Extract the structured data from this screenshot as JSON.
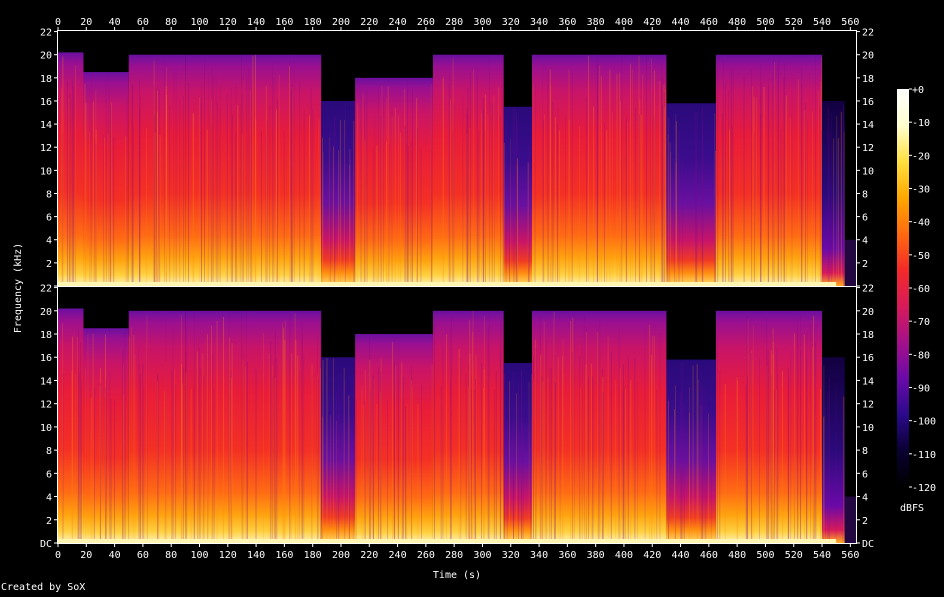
{
  "chart_data": {
    "type": "heatmap",
    "xlabel": "Time (s)",
    "ylabel": "Frequency (kHz)",
    "x_ticks": [
      0,
      20,
      40,
      60,
      80,
      100,
      120,
      140,
      160,
      180,
      200,
      220,
      240,
      260,
      280,
      300,
      320,
      340,
      360,
      380,
      400,
      420,
      440,
      460,
      480,
      500,
      520,
      540,
      560
    ],
    "xlim": [
      0,
      564
    ],
    "ylim": [
      0,
      22.05
    ],
    "y_ticks": [
      0,
      2,
      4,
      6,
      8,
      10,
      12,
      14,
      16,
      18,
      20,
      22
    ],
    "y_tick_labels": [
      "DC",
      "2",
      "4",
      "6",
      "8",
      "10",
      "12",
      "14",
      "16",
      "18",
      "20",
      "22"
    ],
    "colorbar": {
      "label": "dBFS",
      "ticks": [
        0,
        -10,
        -20,
        -30,
        -40,
        -50,
        -60,
        -70,
        -80,
        -90,
        -100,
        -110,
        -120
      ],
      "tick_labels": [
        "+0",
        "-10",
        "-20",
        "-30",
        "-40",
        "-50",
        "-60",
        "-70",
        "-80",
        "-90",
        "-100",
        "-110",
        "-120"
      ],
      "range": [
        -120,
        0
      ]
    },
    "channels": 2,
    "segments": [
      {
        "start": 0,
        "end": 18,
        "top_khz": 20.2,
        "level": "high"
      },
      {
        "start": 18,
        "end": 50,
        "top_khz": 18.5,
        "level": "high"
      },
      {
        "start": 50,
        "end": 90,
        "top_khz": 20.0,
        "level": "high"
      },
      {
        "start": 90,
        "end": 130,
        "top_khz": 20.0,
        "level": "high"
      },
      {
        "start": 130,
        "end": 186,
        "top_khz": 20.0,
        "level": "high"
      },
      {
        "start": 186,
        "end": 210,
        "top_khz": 16.0,
        "level": "low"
      },
      {
        "start": 210,
        "end": 265,
        "top_khz": 18.0,
        "level": "high"
      },
      {
        "start": 265,
        "end": 315,
        "top_khz": 20.0,
        "level": "high"
      },
      {
        "start": 315,
        "end": 335,
        "top_khz": 15.5,
        "level": "low"
      },
      {
        "start": 335,
        "end": 430,
        "top_khz": 20.0,
        "level": "high"
      },
      {
        "start": 430,
        "end": 465,
        "top_khz": 15.8,
        "level": "low"
      },
      {
        "start": 465,
        "end": 540,
        "top_khz": 20.0,
        "level": "high"
      },
      {
        "start": 540,
        "end": 556,
        "top_khz": 16.0,
        "level": "fade"
      }
    ]
  },
  "footer": {
    "credit": "Created by SoX"
  },
  "colors": {
    "background": "#000000",
    "axis": "#ffffff",
    "palette": [
      "#000000",
      "#0a0030",
      "#2a0a8a",
      "#6a0aa8",
      "#a4108a",
      "#d81a5a",
      "#f42a28",
      "#ff6a10",
      "#ffa800",
      "#ffe040",
      "#ffffd0",
      "#ffffff"
    ]
  }
}
